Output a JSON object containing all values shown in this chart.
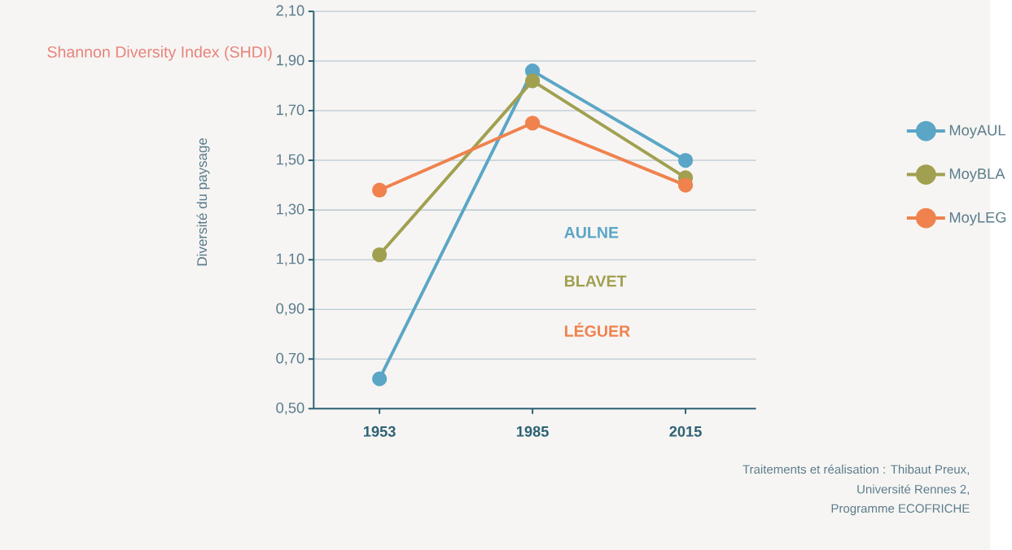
{
  "chart_data": {
    "type": "line",
    "title": "Shannon Diversity Index (SHDI)",
    "ylabel": "Diversité du paysage",
    "categories": [
      "1953",
      "1985",
      "2015"
    ],
    "series": [
      {
        "name": "MoyAUL",
        "color": "#5ba6c6",
        "values": [
          0.62,
          1.86,
          1.5
        ]
      },
      {
        "name": "MoyBLA",
        "color": "#a0a050",
        "values": [
          1.12,
          1.82,
          1.43
        ]
      },
      {
        "name": "MoyLEG",
        "color": "#f0824e",
        "values": [
          1.38,
          1.65,
          1.4
        ]
      }
    ],
    "ylim": [
      0.5,
      2.1
    ],
    "yticks": [
      {
        "value": 0.5,
        "label": "0,50"
      },
      {
        "value": 0.7,
        "label": "0,70"
      },
      {
        "value": 0.9,
        "label": "0,90"
      },
      {
        "value": 1.1,
        "label": "1,10"
      },
      {
        "value": 1.3,
        "label": "1,30"
      },
      {
        "value": 1.5,
        "label": "1,50"
      },
      {
        "value": 1.7,
        "label": "1,70"
      },
      {
        "value": 1.9,
        "label": "1,90"
      },
      {
        "value": 2.1,
        "label": "2,10"
      }
    ],
    "annotations": [
      "AULNE",
      "BLAVET",
      "LÉGUER",
      "Traitements et réalisation : Thibaut Preux,",
      "Université Rennes 2,",
      "Programme ECOFRICHE"
    ],
    "grid": "y",
    "legend": "right",
    "marker": "circle",
    "line_style": "solid"
  }
}
